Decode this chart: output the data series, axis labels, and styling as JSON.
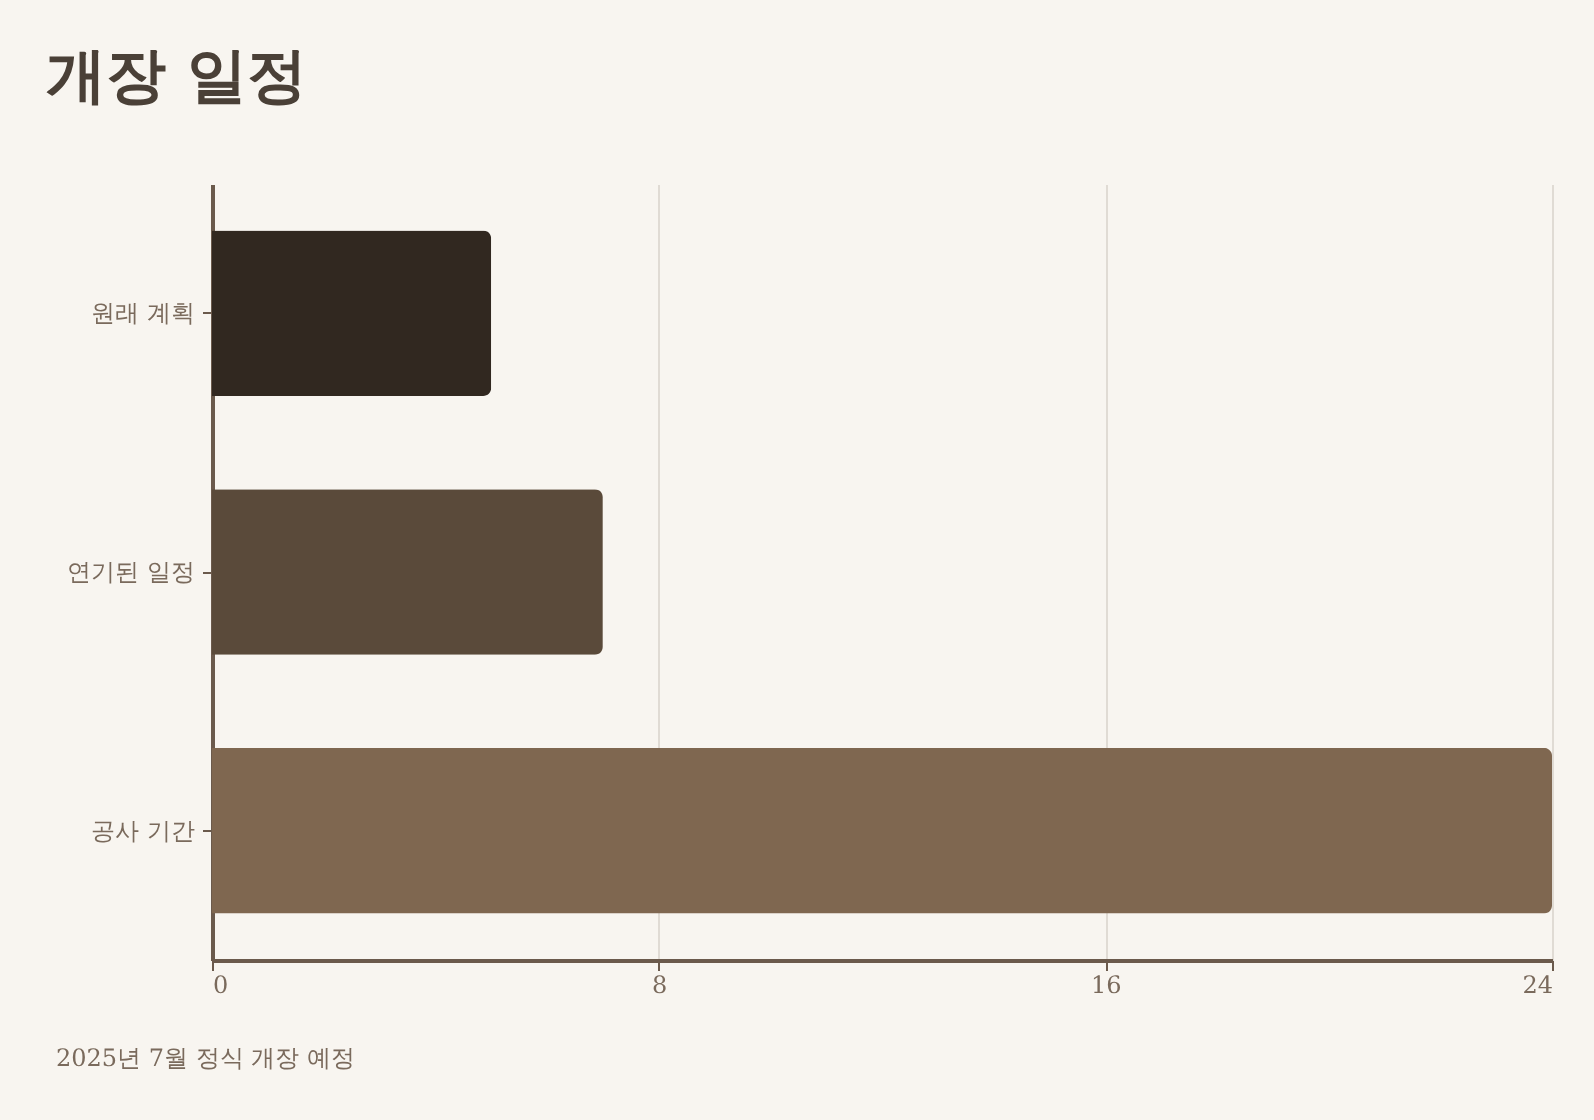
{
  "chart_data": {
    "type": "bar",
    "orientation": "horizontal",
    "title": "개장 일정",
    "categories": [
      "원래 계획",
      "연기된 일정",
      "공사 기간"
    ],
    "values": [
      5,
      7,
      24
    ],
    "colors": [
      "#312820",
      "#5a4a3a",
      "#7f6750"
    ],
    "xlim": [
      0,
      24
    ],
    "xticks": [
      0,
      8,
      16,
      24
    ],
    "grid": "x",
    "annotations": [
      "2025년 7월 정식 개장 예정"
    ]
  }
}
